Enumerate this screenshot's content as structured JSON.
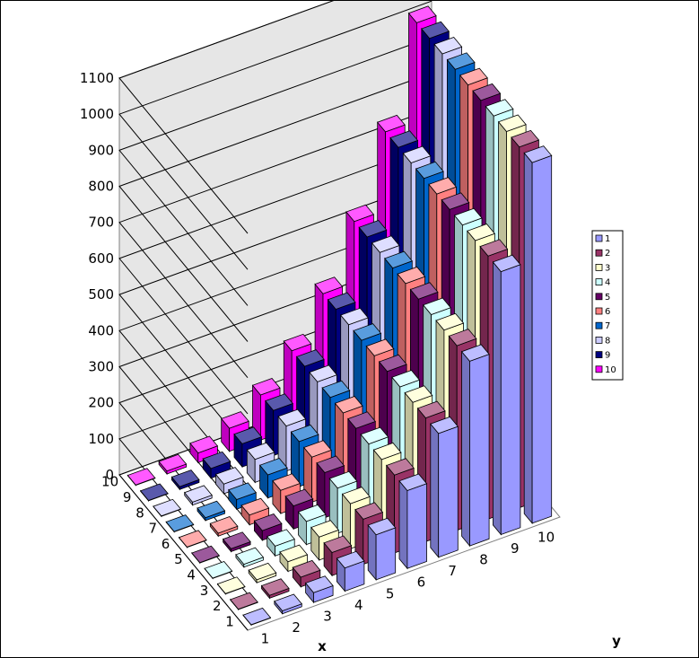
{
  "chart_data": {
    "type": "bar",
    "subtype": "3d-column",
    "title": "",
    "xlabel": "x",
    "ylabel": "y",
    "x_categories": [
      "1",
      "2",
      "3",
      "4",
      "5",
      "6",
      "7",
      "8",
      "9",
      "10"
    ],
    "y_categories": [
      "1",
      "2",
      "3",
      "4",
      "5",
      "6",
      "7",
      "8",
      "9",
      "10"
    ],
    "zlim": [
      0,
      1100
    ],
    "z_ticks": [
      "0",
      "100",
      "200",
      "300",
      "400",
      "500",
      "600",
      "700",
      "800",
      "900",
      "1000",
      "1100"
    ],
    "grid": true,
    "legend_position": "right",
    "series": [
      {
        "name": "1",
        "color": "#9999ff",
        "values": [
          1,
          8,
          27,
          64,
          125,
          216,
          343,
          512,
          729,
          1000
        ]
      },
      {
        "name": "2",
        "color": "#993366",
        "values": [
          1,
          8,
          27,
          64,
          125,
          216,
          343,
          512,
          729,
          1000
        ]
      },
      {
        "name": "3",
        "color": "#ffffcc",
        "values": [
          1,
          8,
          27,
          64,
          125,
          216,
          343,
          512,
          729,
          1000
        ]
      },
      {
        "name": "4",
        "color": "#ccffff",
        "values": [
          1,
          8,
          27,
          64,
          125,
          216,
          343,
          512,
          729,
          1000
        ]
      },
      {
        "name": "5",
        "color": "#660066",
        "values": [
          1,
          8,
          27,
          64,
          125,
          216,
          343,
          512,
          729,
          1000
        ]
      },
      {
        "name": "6",
        "color": "#ff8080",
        "values": [
          1,
          8,
          27,
          64,
          125,
          216,
          343,
          512,
          729,
          1000
        ]
      },
      {
        "name": "7",
        "color": "#0066cc",
        "values": [
          1,
          8,
          27,
          64,
          125,
          216,
          343,
          512,
          729,
          1000
        ]
      },
      {
        "name": "8",
        "color": "#ccccff",
        "values": [
          1,
          8,
          27,
          64,
          125,
          216,
          343,
          512,
          729,
          1000
        ]
      },
      {
        "name": "9",
        "color": "#000080",
        "values": [
          1,
          8,
          27,
          64,
          125,
          216,
          343,
          512,
          729,
          1000
        ]
      },
      {
        "name": "10",
        "color": "#ff00ff",
        "values": [
          1,
          8,
          27,
          64,
          125,
          216,
          343,
          512,
          729,
          1000
        ]
      }
    ]
  }
}
